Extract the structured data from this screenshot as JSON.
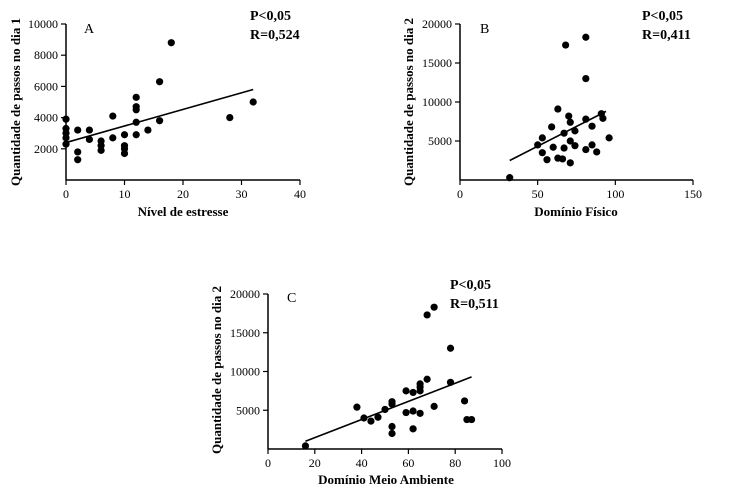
{
  "colors": {
    "ink": "#000000",
    "background": "#ffffff"
  },
  "chart_data": [
    {
      "type": "scatter",
      "panel": "A",
      "xlabel": "Nível de estresse",
      "ylabel": "Quantidade de passos no dia 1",
      "xlim": [
        0,
        40
      ],
      "ylim": [
        0,
        10000
      ],
      "xticks": [
        0,
        10,
        20,
        30,
        40
      ],
      "yticks": [
        2000,
        4000,
        6000,
        8000,
        10000
      ],
      "stats": [
        "P<0,05",
        "R=0,524"
      ],
      "trendline": [
        [
          0,
          2400
        ],
        [
          32,
          5800
        ]
      ],
      "points": [
        [
          0,
          3900
        ],
        [
          0,
          3300
        ],
        [
          0,
          3000
        ],
        [
          0,
          2700
        ],
        [
          0,
          2300
        ],
        [
          2,
          3200
        ],
        [
          2,
          1800
        ],
        [
          2,
          1300
        ],
        [
          4,
          3200
        ],
        [
          4,
          2600
        ],
        [
          6,
          2500
        ],
        [
          6,
          2200
        ],
        [
          6,
          1900
        ],
        [
          8,
          4100
        ],
        [
          8,
          2700
        ],
        [
          10,
          2900
        ],
        [
          10,
          2200
        ],
        [
          10,
          2000
        ],
        [
          10,
          1700
        ],
        [
          12,
          5300
        ],
        [
          12,
          4700
        ],
        [
          12,
          4500
        ],
        [
          12,
          3700
        ],
        [
          12,
          2900
        ],
        [
          14,
          3200
        ],
        [
          16,
          6300
        ],
        [
          16,
          3800
        ],
        [
          18,
          8800
        ],
        [
          28,
          4000
        ],
        [
          32,
          5000
        ]
      ]
    },
    {
      "type": "scatter",
      "panel": "B",
      "xlabel": "Domínio Físico",
      "ylabel": "Quantidade de passos no dia 2",
      "xlim": [
        0,
        150
      ],
      "ylim": [
        0,
        20000
      ],
      "xticks": [
        0,
        50,
        100,
        150
      ],
      "yticks": [
        5000,
        10000,
        15000,
        20000
      ],
      "stats": [
        "P<0,05",
        "R=0,411"
      ],
      "trendline": [
        [
          32,
          2500
        ],
        [
          94,
          8800
        ]
      ],
      "points": [
        [
          32,
          300
        ],
        [
          50,
          4500
        ],
        [
          53,
          5400
        ],
        [
          53,
          3500
        ],
        [
          56,
          2600
        ],
        [
          59,
          6800
        ],
        [
          60,
          4200
        ],
        [
          63,
          9100
        ],
        [
          63,
          2800
        ],
        [
          66,
          2700
        ],
        [
          67,
          6000
        ],
        [
          67,
          4100
        ],
        [
          68,
          17300
        ],
        [
          70,
          8200
        ],
        [
          71,
          7400
        ],
        [
          71,
          5000
        ],
        [
          71,
          2200
        ],
        [
          74,
          6300
        ],
        [
          74,
          4400
        ],
        [
          81,
          18300
        ],
        [
          81,
          13000
        ],
        [
          81,
          7800
        ],
        [
          81,
          3900
        ],
        [
          85,
          6900
        ],
        [
          85,
          4500
        ],
        [
          88,
          3600
        ],
        [
          91,
          8500
        ],
        [
          92,
          7900
        ],
        [
          96,
          5400
        ]
      ]
    },
    {
      "type": "scatter",
      "panel": "C",
      "xlabel": "Domínio Meio Ambiente",
      "ylabel": "Quantidade de passos no dia 2",
      "xlim": [
        0,
        100
      ],
      "ylim": [
        0,
        20000
      ],
      "xticks": [
        0,
        20,
        40,
        60,
        80,
        100
      ],
      "yticks": [
        5000,
        10000,
        15000,
        20000
      ],
      "stats": [
        "P<0,05",
        "R=0,511"
      ],
      "trendline": [
        [
          16,
          1000
        ],
        [
          87,
          9300
        ]
      ],
      "points": [
        [
          16,
          400
        ],
        [
          38,
          5400
        ],
        [
          41,
          4000
        ],
        [
          44,
          3600
        ],
        [
          47,
          4100
        ],
        [
          50,
          5100
        ],
        [
          53,
          6100
        ],
        [
          53,
          5800
        ],
        [
          53,
          2900
        ],
        [
          53,
          2000
        ],
        [
          59,
          7500
        ],
        [
          59,
          4700
        ],
        [
          62,
          7300
        ],
        [
          62,
          4900
        ],
        [
          62,
          2600
        ],
        [
          65,
          8400
        ],
        [
          65,
          8000
        ],
        [
          65,
          7500
        ],
        [
          65,
          4600
        ],
        [
          68,
          17300
        ],
        [
          68,
          9000
        ],
        [
          71,
          18300
        ],
        [
          71,
          5500
        ],
        [
          78,
          13000
        ],
        [
          78,
          8600
        ],
        [
          84,
          6200
        ],
        [
          85,
          3800
        ],
        [
          87,
          3800
        ]
      ]
    }
  ]
}
